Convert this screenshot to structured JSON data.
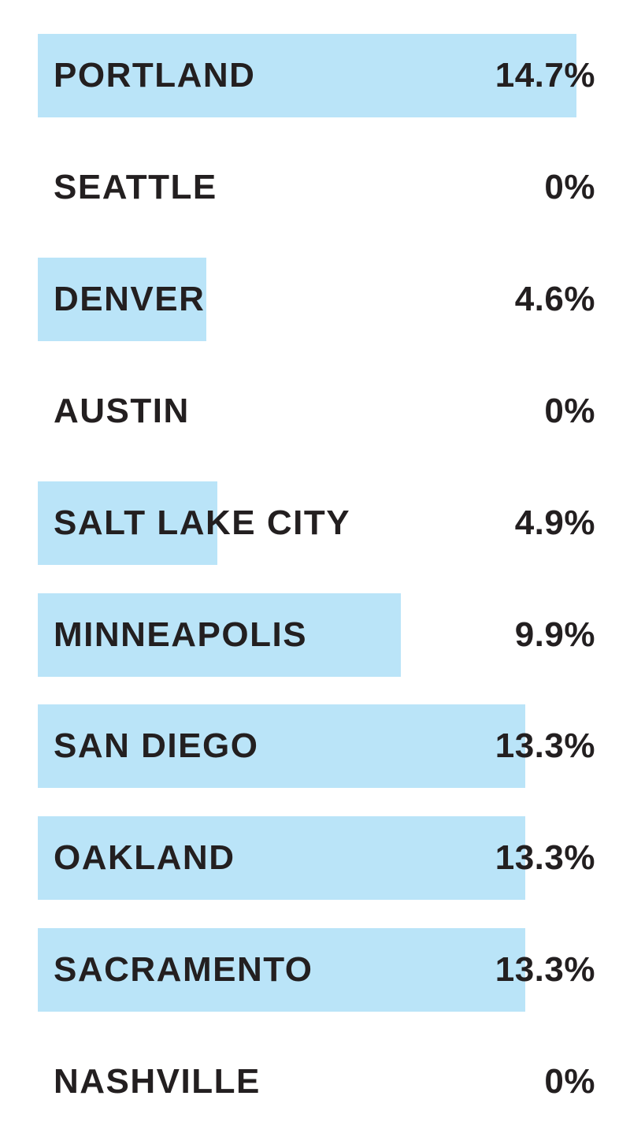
{
  "chart_data": {
    "type": "bar",
    "orientation": "horizontal",
    "categories": [
      "PORTLAND",
      "SEATTLE",
      "DENVER",
      "AUSTIN",
      "SALT LAKE CITY",
      "MINNEAPOLIS",
      "SAN DIEGO",
      "OAKLAND",
      "SACRAMENTO",
      "NASHVILLE"
    ],
    "values": [
      14.7,
      0,
      4.6,
      0,
      4.9,
      9.9,
      13.3,
      13.3,
      13.3,
      0
    ],
    "value_labels": [
      "14.7%",
      "0%",
      "4.6%",
      "0%",
      "4.9%",
      "9.9%",
      "13.3%",
      "13.3%",
      "13.3%",
      "0%"
    ],
    "xlim": [
      0,
      14.7
    ],
    "bar_color": "#bae4f8",
    "text_color": "#231f20",
    "grid": false
  }
}
